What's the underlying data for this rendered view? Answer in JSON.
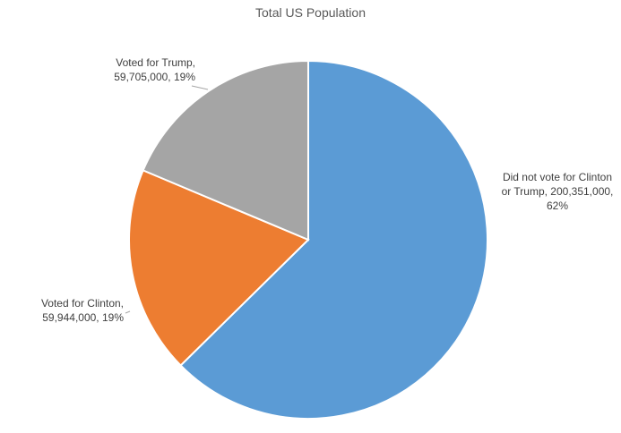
{
  "chart_data": {
    "type": "pie",
    "title": "Total US Population",
    "slices": [
      {
        "name": "Did not vote for Clinton or Trump",
        "value": 200351000,
        "percent": 62,
        "color": "#5b9bd5",
        "label_lines": [
          "Did not vote for Clinton",
          "or Trump, 200,351,000,",
          "62%"
        ]
      },
      {
        "name": "Voted for Clinton",
        "value": 59944000,
        "percent": 19,
        "color": "#ed7d31",
        "label_lines": [
          "Voted for Clinton,",
          "59,944,000, 19%"
        ]
      },
      {
        "name": "Voted for Trump",
        "value": 59705000,
        "percent": 19,
        "color": "#a5a5a5",
        "label_lines": [
          "Voted for Trump,",
          "59,705,000, 19%"
        ]
      }
    ]
  }
}
